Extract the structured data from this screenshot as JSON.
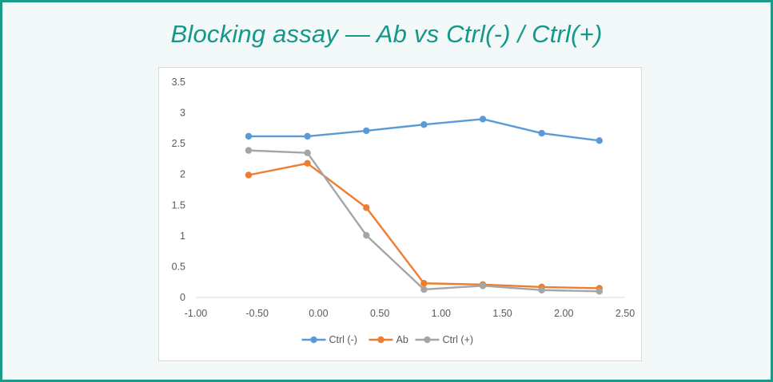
{
  "title": "Blocking assay — Ab vs Ctrl(-) / Ctrl(+)",
  "chart_data": {
    "type": "line",
    "x": [
      -0.57,
      -0.09,
      0.39,
      0.86,
      1.34,
      1.82,
      2.29
    ],
    "xlim": [
      -1.0,
      2.5
    ],
    "ylim": [
      0,
      3.5
    ],
    "xticks": [
      "-1.00",
      "-0.50",
      "0.00",
      "0.50",
      "1.00",
      "1.50",
      "2.00",
      "2.50"
    ],
    "xtick_values": [
      -1.0,
      -0.5,
      0.0,
      0.5,
      1.0,
      1.5,
      2.0,
      2.5
    ],
    "yticks": [
      "0",
      "0.5",
      "1",
      "1.5",
      "2",
      "2.5",
      "3",
      "3.5"
    ],
    "ytick_values": [
      0,
      0.5,
      1,
      1.5,
      2,
      2.5,
      3,
      3.5
    ],
    "xlabel": "",
    "ylabel": "",
    "grid": false,
    "legend_position": "bottom",
    "series": [
      {
        "name": "Ctrl (-)",
        "color": "#5b9bd5",
        "values": [
          2.62,
          2.62,
          2.71,
          2.81,
          2.9,
          2.67,
          2.55
        ]
      },
      {
        "name": "Ab",
        "color": "#ed7d31",
        "values": [
          1.99,
          2.18,
          1.46,
          0.23,
          0.21,
          0.17,
          0.15
        ]
      },
      {
        "name": "Ctrl (+)",
        "color": "#a5a5a5",
        "values": [
          2.39,
          2.35,
          1.01,
          0.13,
          0.19,
          0.12,
          0.1
        ]
      }
    ]
  }
}
